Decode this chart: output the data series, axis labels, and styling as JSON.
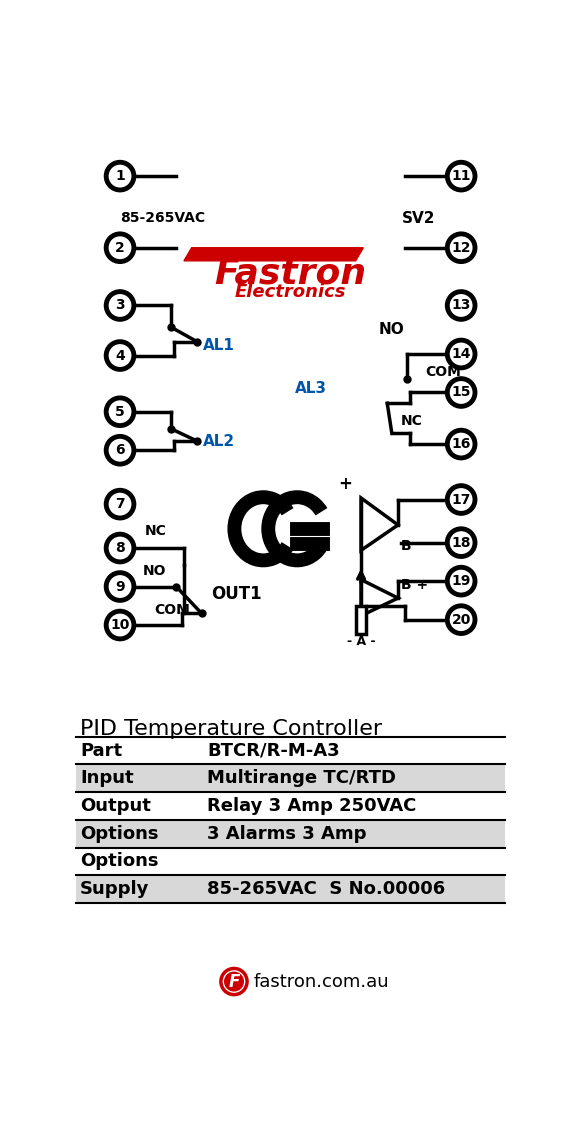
{
  "bg_color": "#ffffff",
  "line_color": "#000000",
  "red_color": "#cc0000",
  "blue_color": "#0055aa",
  "title_text": "PID Temperature Controller",
  "rows": [
    {
      "label": "Part",
      "value": "BTCR/R-M-A3"
    },
    {
      "label": "Input",
      "value": "Multirange TC/RTD"
    },
    {
      "label": "Output",
      "value": "Relay 3 Amp 250VAC"
    },
    {
      "label": "Options",
      "value": "3 Alarms 3 Amp"
    },
    {
      "label": "Options",
      "value": ""
    },
    {
      "label": "Supply",
      "value": "85-265VAC  S No.00006"
    }
  ],
  "footer_text": "fastron.com.au",
  "label_85_265VAC": "85-265VAC",
  "label_SV2": "SV2",
  "label_AL1": "AL1",
  "label_AL2": "AL2",
  "label_AL3": "AL3",
  "label_OUT1": "OUT1",
  "label_plus": "+",
  "label_B": "B",
  "label_B_plus": "B +",
  "label_minus_A_minus": "- A -",
  "left_pins": [
    1,
    2,
    3,
    4,
    5,
    6,
    7,
    8,
    9,
    10
  ],
  "right_pins": [
    11,
    12,
    13,
    14,
    15,
    16,
    17,
    18,
    19,
    20
  ],
  "pin_r": 18,
  "pin_lw": 3.5
}
